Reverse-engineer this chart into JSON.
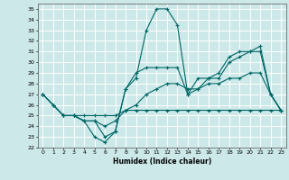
{
  "xlabel": "Humidex (Indice chaleur)",
  "xlim": [
    -0.5,
    23.5
  ],
  "ylim": [
    22,
    35.5
  ],
  "yticks": [
    22,
    23,
    24,
    25,
    26,
    27,
    28,
    29,
    30,
    31,
    32,
    33,
    34,
    35
  ],
  "xticks": [
    0,
    1,
    2,
    3,
    4,
    5,
    6,
    7,
    8,
    9,
    10,
    11,
    12,
    13,
    14,
    15,
    16,
    17,
    18,
    19,
    20,
    21,
    22,
    23
  ],
  "bg_color": "#cce8e8",
  "grid_color": "#ffffff",
  "line_color": "#006666",
  "lines": [
    {
      "x": [
        0,
        1,
        2,
        3,
        4,
        5,
        6,
        7,
        8,
        9,
        10,
        11,
        12,
        13,
        14,
        15,
        16,
        17,
        18,
        19,
        20,
        21,
        22,
        23
      ],
      "y": [
        27,
        26,
        25,
        25,
        25,
        25,
        25,
        25,
        25.5,
        25.5,
        25.5,
        25.5,
        25.5,
        25.5,
        25.5,
        25.5,
        25.5,
        25.5,
        25.5,
        25.5,
        25.5,
        25.5,
        25.5,
        25.5
      ]
    },
    {
      "x": [
        0,
        1,
        2,
        3,
        4,
        5,
        6,
        7,
        8,
        9,
        10,
        11,
        12,
        13,
        14,
        15,
        16,
        17,
        18,
        19,
        20,
        21,
        22,
        23
      ],
      "y": [
        27,
        26,
        25,
        25,
        24.5,
        24.5,
        24,
        24.5,
        25.5,
        26,
        27,
        27.5,
        28,
        28,
        27.5,
        27.5,
        28,
        28,
        28.5,
        28.5,
        29,
        29,
        27,
        25.5
      ]
    },
    {
      "x": [
        2,
        3,
        4,
        5,
        6,
        7,
        8,
        9,
        10,
        11,
        12,
        13,
        14,
        15,
        16,
        17,
        18,
        19,
        20,
        21,
        22,
        23
      ],
      "y": [
        25,
        25,
        24.5,
        24.5,
        23,
        23.5,
        27.5,
        28.5,
        33,
        35,
        35,
        33.5,
        27,
        27.5,
        28.5,
        28.5,
        30,
        30.5,
        31,
        31,
        27,
        25.5
      ]
    },
    {
      "x": [
        0,
        1,
        2,
        3,
        4,
        5,
        6,
        7,
        8,
        9,
        10,
        11,
        12,
        13,
        14,
        15,
        16,
        17,
        18,
        19,
        20,
        21,
        22,
        23
      ],
      "y": [
        27,
        26,
        25,
        25,
        24.5,
        23,
        22.5,
        23.5,
        27.5,
        29,
        29.5,
        29.5,
        29.5,
        29.5,
        27,
        28.5,
        28.5,
        29,
        30.5,
        31,
        31,
        31.5,
        27,
        25.5
      ]
    }
  ]
}
